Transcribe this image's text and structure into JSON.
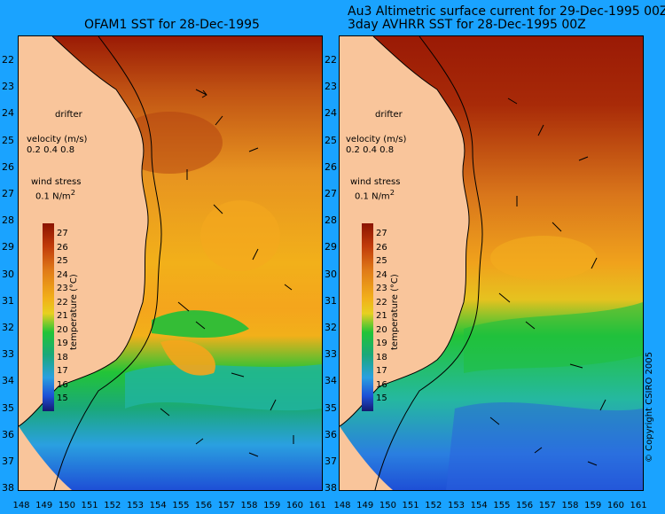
{
  "left_panel": {
    "title": "OFAM1 SST for 28-Dec-1995"
  },
  "right_panel": {
    "title_line1": "Au3 Altimetric surface current for 29-Dec-1995 00Z",
    "title_line2": "3day AVHRR SST for 28-Dec-1995 00Z"
  },
  "legend": {
    "drifter": "drifter",
    "velocity_label": "velocity (m/s)",
    "velocity_values": "0.2 0.4 0.8",
    "wind_label": "wind stress",
    "wind_value": "0.1 N/m",
    "wind_sup": "2",
    "colorbar_title": "temperature (°C)",
    "colorbar_ticks": [
      "27",
      "26",
      "25",
      "24",
      "23",
      "22",
      "21",
      "20",
      "19",
      "18",
      "17",
      "16",
      "15"
    ]
  },
  "axes": {
    "latitudes": [
      "22",
      "23",
      "24",
      "25",
      "26",
      "27",
      "28",
      "29",
      "30",
      "31",
      "32",
      "33",
      "34",
      "35",
      "36",
      "37",
      "38"
    ],
    "longitudes_left": [
      "148",
      "149",
      "150",
      "151",
      "152",
      "153",
      "154",
      "155",
      "156",
      "157",
      "158",
      "159",
      "160",
      "161"
    ],
    "longitudes_right": [
      "148",
      "149",
      "150",
      "151",
      "152",
      "153",
      "154",
      "155",
      "156",
      "157",
      "158",
      "159",
      "160",
      "161"
    ]
  },
  "copyright": "© Copyright CSIRO 2005",
  "colors": {
    "background": "#1aa3ff",
    "land": "#f9c59b",
    "sst_warm": "#9a1a05",
    "sst_mid": "#f2b01a",
    "sst_cool": "#22c437",
    "sst_cold": "#1e4fd6"
  }
}
